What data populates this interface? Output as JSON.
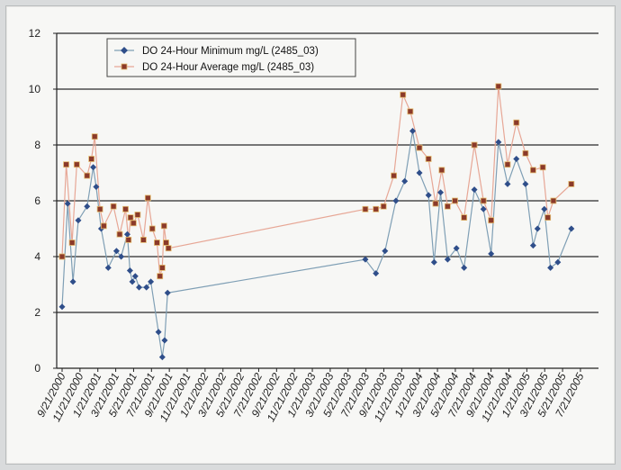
{
  "chart_data": {
    "type": "line",
    "title": "",
    "xlabel": "",
    "ylabel": "",
    "ylim": [
      0,
      12
    ],
    "y_ticks": [
      0,
      2,
      4,
      6,
      8,
      10,
      12
    ],
    "x_tick_labels": [
      "9/21/2000",
      "11/21/2000",
      "1/21/2001",
      "3/21/2001",
      "5/21/2001",
      "7/21/2001",
      "9/21/2001",
      "11/21/2001",
      "1/21/2002",
      "3/21/2002",
      "5/21/2002",
      "7/21/2002",
      "9/21/2002",
      "11/21/2002",
      "1/21/2003",
      "3/21/2003",
      "5/21/2003",
      "7/21/2003",
      "9/21/2003",
      "11/21/2003",
      "1/21/2004",
      "3/21/2004",
      "5/21/2004",
      "7/21/2004",
      "9/21/2004",
      "11/21/2004",
      "1/21/2005",
      "3/21/2005",
      "5/21/2005",
      "7/21/2005"
    ],
    "grid": "horizontal",
    "legend_position": "top-left",
    "series": [
      {
        "name": "DO 24-Hour Minimum mg/L (2485_03)",
        "color": "#2f4e8a",
        "line_color": "#7f9fb5",
        "marker": "diamond",
        "points": [
          [
            "2000-09-21",
            2.2
          ],
          [
            "2000-10-10",
            5.9
          ],
          [
            "2000-10-28",
            3.1
          ],
          [
            "2000-11-15",
            5.3
          ],
          [
            "2000-12-15",
            5.8
          ],
          [
            "2001-01-05",
            7.2
          ],
          [
            "2001-01-15",
            6.5
          ],
          [
            "2001-02-01",
            5.0
          ],
          [
            "2001-02-25",
            3.6
          ],
          [
            "2001-03-25",
            4.2
          ],
          [
            "2001-04-10",
            4.0
          ],
          [
            "2001-05-01",
            4.8
          ],
          [
            "2001-05-10",
            3.5
          ],
          [
            "2001-05-18",
            3.1
          ],
          [
            "2001-05-28",
            3.3
          ],
          [
            "2001-06-10",
            2.9
          ],
          [
            "2001-07-05",
            2.9
          ],
          [
            "2001-07-20",
            3.1
          ],
          [
            "2001-08-15",
            1.3
          ],
          [
            "2001-08-28",
            0.4
          ],
          [
            "2001-09-05",
            1.0
          ],
          [
            "2001-09-15",
            2.7
          ],
          [
            "2003-07-20",
            3.9
          ],
          [
            "2003-08-25",
            3.4
          ],
          [
            "2003-09-25",
            4.2
          ],
          [
            "2003-11-01",
            6.0
          ],
          [
            "2003-12-01",
            6.7
          ],
          [
            "2003-12-28",
            8.5
          ],
          [
            "2004-01-20",
            7.0
          ],
          [
            "2004-02-20",
            6.2
          ],
          [
            "2004-03-10",
            3.8
          ],
          [
            "2004-04-01",
            6.3
          ],
          [
            "2004-04-25",
            3.9
          ],
          [
            "2004-05-25",
            4.3
          ],
          [
            "2004-06-20",
            3.6
          ],
          [
            "2004-07-25",
            6.4
          ],
          [
            "2004-08-25",
            5.7
          ],
          [
            "2004-09-20",
            4.1
          ],
          [
            "2004-10-15",
            8.1
          ],
          [
            "2004-11-15",
            6.6
          ],
          [
            "2004-12-15",
            7.5
          ],
          [
            "2005-01-15",
            6.6
          ],
          [
            "2005-02-10",
            4.4
          ],
          [
            "2005-02-25",
            5.0
          ],
          [
            "2005-03-20",
            5.7
          ],
          [
            "2005-04-10",
            3.6
          ],
          [
            "2005-05-05",
            3.8
          ],
          [
            "2005-06-20",
            5.0
          ]
        ]
      },
      {
        "name": "DO 24-Hour Average mg/L (2485_03)",
        "color": "#8b3a2a",
        "line_color": "#e7a796",
        "marker": "square",
        "points": [
          [
            "2000-09-21",
            4.0
          ],
          [
            "2000-10-05",
            7.3
          ],
          [
            "2000-10-25",
            4.5
          ],
          [
            "2000-11-10",
            7.3
          ],
          [
            "2000-12-15",
            6.9
          ],
          [
            "2000-12-30",
            7.5
          ],
          [
            "2001-01-10",
            8.3
          ],
          [
            "2001-01-28",
            5.7
          ],
          [
            "2001-02-10",
            5.1
          ],
          [
            "2001-03-15",
            5.8
          ],
          [
            "2001-04-05",
            4.8
          ],
          [
            "2001-04-25",
            5.7
          ],
          [
            "2001-05-05",
            4.6
          ],
          [
            "2001-05-12",
            5.4
          ],
          [
            "2001-05-22",
            5.2
          ],
          [
            "2001-06-05",
            5.5
          ],
          [
            "2001-06-25",
            4.6
          ],
          [
            "2001-07-10",
            6.1
          ],
          [
            "2001-07-25",
            5.0
          ],
          [
            "2001-08-10",
            4.5
          ],
          [
            "2001-08-20",
            3.3
          ],
          [
            "2001-08-28",
            3.6
          ],
          [
            "2001-09-03",
            5.1
          ],
          [
            "2001-09-10",
            4.5
          ],
          [
            "2001-09-18",
            4.3
          ],
          [
            "2003-07-20",
            5.7
          ],
          [
            "2003-08-25",
            5.7
          ],
          [
            "2003-09-20",
            5.8
          ],
          [
            "2003-10-25",
            6.9
          ],
          [
            "2003-11-25",
            9.8
          ],
          [
            "2003-12-20",
            9.2
          ],
          [
            "2004-01-20",
            7.9
          ],
          [
            "2004-02-20",
            7.5
          ],
          [
            "2004-03-15",
            5.9
          ],
          [
            "2004-04-05",
            7.1
          ],
          [
            "2004-04-25",
            5.8
          ],
          [
            "2004-05-20",
            6.0
          ],
          [
            "2004-06-20",
            5.4
          ],
          [
            "2004-07-25",
            8.0
          ],
          [
            "2004-08-25",
            6.0
          ],
          [
            "2004-09-20",
            5.3
          ],
          [
            "2004-10-15",
            10.1
          ],
          [
            "2004-11-15",
            7.3
          ],
          [
            "2004-12-15",
            8.8
          ],
          [
            "2005-01-15",
            7.7
          ],
          [
            "2005-02-10",
            7.1
          ],
          [
            "2005-03-15",
            7.2
          ],
          [
            "2005-04-01",
            5.4
          ],
          [
            "2005-04-20",
            6.0
          ],
          [
            "2005-06-20",
            6.6
          ]
        ]
      }
    ]
  }
}
